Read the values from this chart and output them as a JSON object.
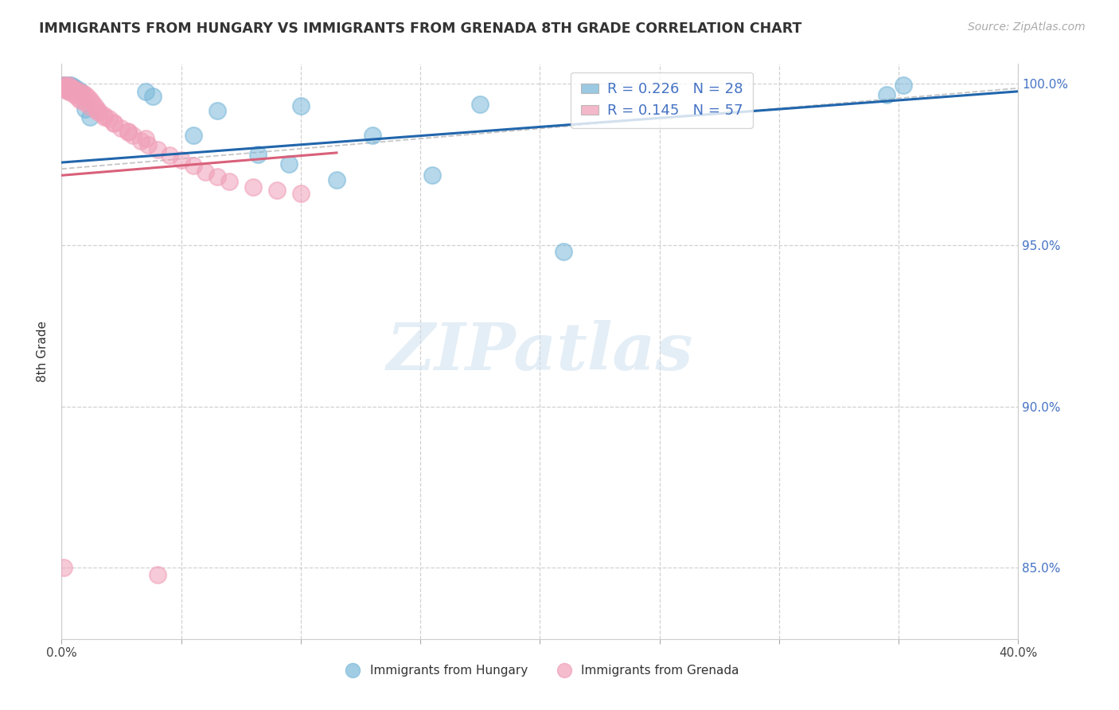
{
  "title": "IMMIGRANTS FROM HUNGARY VS IMMIGRANTS FROM GRENADA 8TH GRADE CORRELATION CHART",
  "source": "Source: ZipAtlas.com",
  "ylabel": "8th Grade",
  "xlim": [
    0.0,
    0.4
  ],
  "ylim": [
    0.828,
    1.006
  ],
  "yticks": [
    0.85,
    0.9,
    0.95,
    1.0
  ],
  "yticklabels_right": [
    "85.0%",
    "90.0%",
    "95.0%",
    "100.0%"
  ],
  "xticks": [
    0.0,
    0.05,
    0.1,
    0.15,
    0.2,
    0.25,
    0.3,
    0.35,
    0.4
  ],
  "xticklabels": [
    "0.0%",
    "",
    "",
    "",
    "",
    "",
    "",
    "",
    "40.0%"
  ],
  "legend_hungary": "Immigrants from Hungary",
  "legend_grenada": "Immigrants from Grenada",
  "R_hungary": "0.226",
  "N_hungary": "28",
  "R_grenada": "0.145",
  "N_grenada": "57",
  "color_hungary": "#7ab8d9",
  "color_grenada": "#f0a0b8",
  "color_line_hungary": "#2166ac",
  "color_line_grenada": "#d9607a",
  "watermark_text": "ZIPatlas",
  "hungary_line_x": [
    0.0,
    0.4
  ],
  "hungary_line_y": [
    0.9755,
    0.9975
  ],
  "grenada_line_x": [
    0.0,
    0.115
  ],
  "grenada_line_y": [
    0.9715,
    0.9785
  ],
  "dashed_line_x": [
    0.0,
    0.4
  ],
  "dashed_line_y": [
    0.9735,
    0.9985
  ],
  "hungary_scatter_x": [
    0.001,
    0.002,
    0.002,
    0.003,
    0.003,
    0.004,
    0.005,
    0.006,
    0.007,
    0.008,
    0.01,
    0.012,
    0.035,
    0.038,
    0.055,
    0.065,
    0.082,
    0.095,
    0.1,
    0.115,
    0.13,
    0.155,
    0.175,
    0.21,
    0.345,
    0.352,
    0.001,
    0.002
  ],
  "hungary_scatter_y": [
    0.9995,
    0.999,
    0.9985,
    0.9993,
    0.9988,
    0.9995,
    0.999,
    0.9985,
    0.998,
    0.9975,
    0.992,
    0.9895,
    0.9975,
    0.996,
    0.984,
    0.9915,
    0.978,
    0.975,
    0.993,
    0.97,
    0.984,
    0.9715,
    0.9935,
    0.948,
    0.9965,
    0.9993,
    0.9993,
    0.9988
  ],
  "grenada_scatter_x": [
    0.001,
    0.001,
    0.002,
    0.002,
    0.003,
    0.003,
    0.003,
    0.004,
    0.004,
    0.005,
    0.005,
    0.006,
    0.007,
    0.007,
    0.008,
    0.009,
    0.01,
    0.011,
    0.012,
    0.013,
    0.014,
    0.015,
    0.016,
    0.018,
    0.02,
    0.022,
    0.025,
    0.028,
    0.03,
    0.033,
    0.036,
    0.04,
    0.045,
    0.05,
    0.055,
    0.06,
    0.065,
    0.07,
    0.08,
    0.09,
    0.1,
    0.002,
    0.003,
    0.004,
    0.005,
    0.006,
    0.007,
    0.008,
    0.01,
    0.012,
    0.015,
    0.018,
    0.022,
    0.028,
    0.035,
    0.001,
    0.04
  ],
  "grenada_scatter_y": [
    0.9993,
    0.9985,
    0.9992,
    0.998,
    0.9993,
    0.9985,
    0.9975,
    0.9988,
    0.9975,
    0.9985,
    0.9968,
    0.9975,
    0.9978,
    0.9962,
    0.9968,
    0.997,
    0.9965,
    0.9958,
    0.995,
    0.994,
    0.993,
    0.992,
    0.991,
    0.99,
    0.989,
    0.9878,
    0.986,
    0.985,
    0.9838,
    0.9822,
    0.981,
    0.9795,
    0.9778,
    0.9762,
    0.9745,
    0.9725,
    0.971,
    0.9695,
    0.968,
    0.967,
    0.966,
    0.9988,
    0.9978,
    0.9982,
    0.9972,
    0.9965,
    0.9955,
    0.9948,
    0.994,
    0.9928,
    0.9912,
    0.9895,
    0.9875,
    0.9852,
    0.9828,
    0.85,
    0.848
  ]
}
